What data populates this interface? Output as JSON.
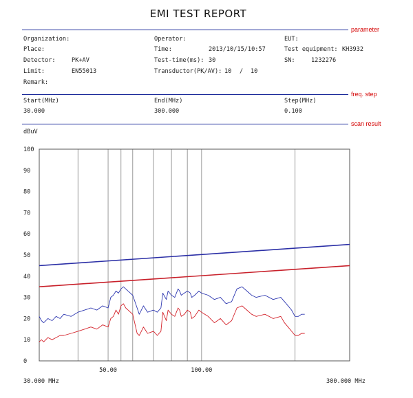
{
  "report": {
    "title": "EMI TEST REPORT",
    "section_labels": {
      "parameter": "parameter",
      "freq_step": "freq. step",
      "scan_result": "scan result"
    },
    "params": {
      "organization_label": "Organization:",
      "place_label": "Place:",
      "detector_label": "Detector:",
      "detector_value": "PK+AV",
      "limit_label": "Limit:",
      "limit_value": "EN55013",
      "remark_label": "Remark:",
      "operator_label": "Operator:",
      "time_label": "Time:",
      "time_value": "2013/10/15/10:57",
      "test_time_label": "Test-time(ms):",
      "test_time_value": "30",
      "transductor_label": "Transductor(PK/AV):",
      "transductor_pk": "10",
      "transductor_sep": "/",
      "transductor_av": "10",
      "eut_label": "EUT:",
      "test_equipment_label": "Test equipment:",
      "test_equipment_value": "KH3932",
      "sn_label": "SN:",
      "sn_value": "1232276"
    },
    "freq": {
      "start_label": "Start(MHz)",
      "start_value": "30.000",
      "end_label": "End(MHz)",
      "end_value": "300.000",
      "step_label": "Step(MHz)",
      "step_value": "0.100"
    },
    "colors": {
      "accent_red": "#d40000",
      "divider_blue": "#1b2a9a",
      "limit_pk": "#2b2fa6",
      "limit_av": "#c8202a",
      "trace_pk": "#2d37b0",
      "trace_av": "#d4222a",
      "grid": "#9a9a9a"
    }
  },
  "chart_data": {
    "type": "line",
    "ylabel": "dBuV",
    "ylim": [
      0,
      100
    ],
    "yticks": [
      0,
      10,
      20,
      30,
      40,
      50,
      60,
      70,
      80,
      90,
      100
    ],
    "xlim": [
      30,
      300
    ],
    "x_scale": "log",
    "x_tick_labels": [
      "50.00",
      "100.00"
    ],
    "x_tick_values": [
      50,
      100
    ],
    "x_start_label": "30.000 MHz",
    "x_end_label": "300.000 MHz",
    "grid_x": [
      40,
      50,
      55,
      60,
      70,
      80,
      90,
      100,
      200
    ],
    "grid": true,
    "series": [
      {
        "role": "limit",
        "color": "#2b2fa6",
        "x": [
          30,
          300
        ],
        "y": [
          45,
          55
        ]
      },
      {
        "role": "limit",
        "color": "#c8202a",
        "x": [
          30,
          300
        ],
        "y": [
          35,
          45
        ]
      },
      {
        "role": "trace",
        "color": "#2d37b0",
        "x": [
          30,
          30.5,
          31,
          32,
          33,
          34,
          35,
          36,
          38,
          40,
          42,
          44,
          46,
          48,
          50,
          51,
          52,
          53,
          54,
          55,
          56,
          57,
          58,
          60,
          62,
          63,
          64,
          65,
          67,
          70,
          72,
          74,
          75,
          77,
          78,
          80,
          82,
          84,
          85,
          86,
          88,
          90,
          92,
          93,
          95,
          98,
          100,
          105,
          110,
          115,
          120,
          125,
          130,
          135,
          140,
          145,
          150,
          160,
          170,
          180,
          185,
          190,
          195,
          200,
          205,
          210,
          215
        ],
        "y": [
          21,
          19,
          18,
          20,
          19,
          21,
          20,
          22,
          21,
          23,
          24,
          25,
          24,
          26,
          25,
          30,
          31,
          33,
          32,
          34,
          35,
          34,
          33,
          31,
          25,
          22,
          24,
          26,
          23,
          24,
          23,
          25,
          32,
          29,
          33,
          31,
          30,
          34,
          33,
          31,
          32,
          33,
          32,
          30,
          31,
          33,
          32,
          31,
          29,
          30,
          27,
          28,
          34,
          35,
          33,
          31,
          30,
          31,
          29,
          30,
          28,
          26,
          24,
          21,
          21,
          22,
          22
        ]
      },
      {
        "role": "trace",
        "color": "#d4222a",
        "x": [
          30,
          30.5,
          31,
          32,
          33,
          34,
          35,
          36,
          38,
          40,
          42,
          44,
          46,
          48,
          50,
          51,
          52,
          53,
          54,
          55,
          56,
          57,
          58,
          60,
          62,
          63,
          64,
          65,
          67,
          70,
          72,
          74,
          75,
          77,
          78,
          80,
          82,
          84,
          85,
          86,
          88,
          90,
          92,
          93,
          95,
          98,
          100,
          105,
          110,
          115,
          120,
          125,
          130,
          135,
          140,
          145,
          150,
          160,
          170,
          180,
          185,
          190,
          195,
          200,
          205,
          210,
          215
        ],
        "y": [
          9,
          10,
          9,
          11,
          10,
          11,
          12,
          12,
          13,
          14,
          15,
          16,
          15,
          17,
          16,
          20,
          21,
          24,
          22,
          26,
          27,
          25,
          24,
          22,
          13,
          12,
          14,
          16,
          13,
          14,
          12,
          14,
          23,
          19,
          24,
          22,
          21,
          25,
          24,
          21,
          22,
          24,
          23,
          20,
          21,
          24,
          23,
          21,
          18,
          20,
          17,
          19,
          25,
          26,
          24,
          22,
          21,
          22,
          20,
          21,
          18,
          16,
          14,
          12,
          12,
          13,
          13
        ]
      }
    ]
  }
}
